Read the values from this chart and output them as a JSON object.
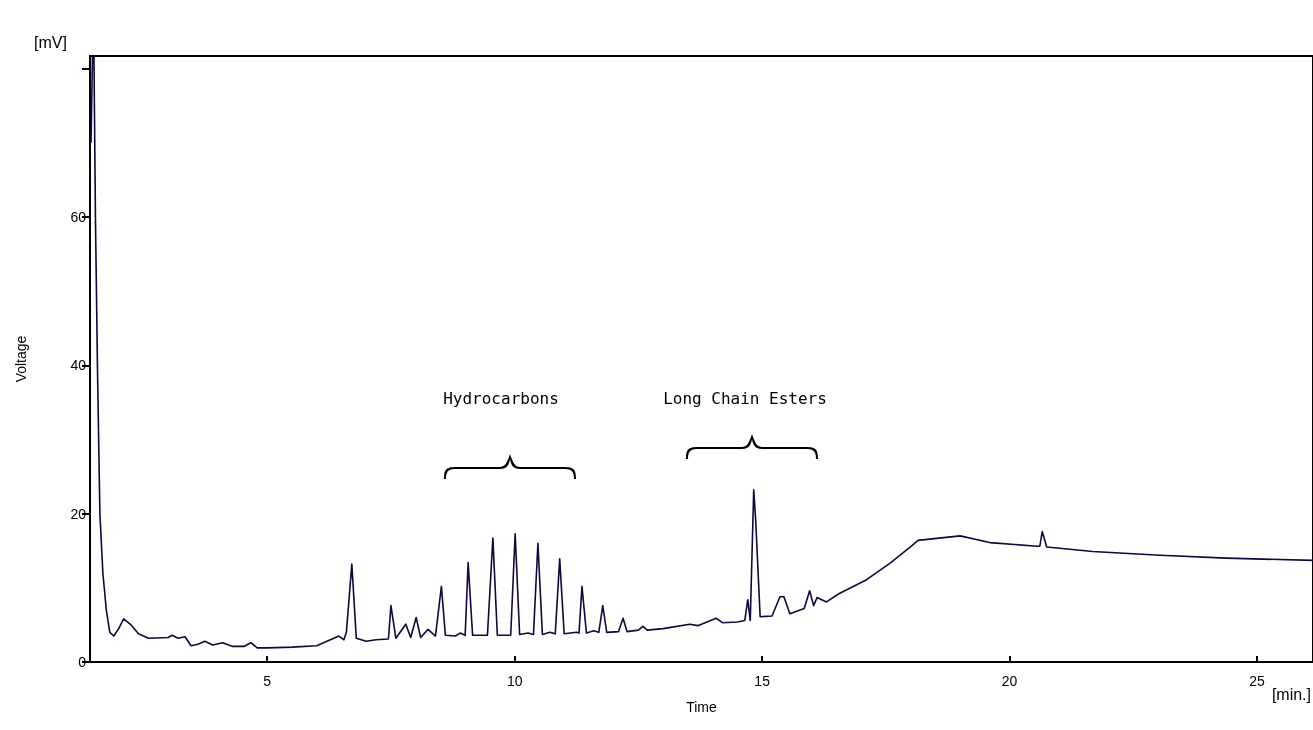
{
  "chart_data": {
    "type": "line",
    "xlabel": "Time",
    "ylabel": "Voltage",
    "annotations": [
      "[mV]",
      "[min.]",
      "Hydrocarbons",
      "Long Chain Esters"
    ],
    "xlim": [
      1.42,
      26.13
    ],
    "xticks": [
      5,
      10,
      15,
      20,
      25
    ],
    "ylim": [
      0,
      81.7
    ],
    "yticks": [
      0,
      20,
      40,
      60,
      {
        "value": 80,
        "label": null
      }
    ],
    "grid": false,
    "marker": "none",
    "series": [
      {
        "color": "#0a0a40",
        "x": [
          1.44,
          1.47,
          1.5,
          1.53,
          1.57,
          1.62,
          1.68,
          1.75,
          1.82,
          1.9,
          2.0,
          2.1,
          2.25,
          2.4,
          2.6,
          3.0,
          3.08,
          3.2,
          3.34,
          3.46,
          3.6,
          3.74,
          3.9,
          4.1,
          4.3,
          4.53,
          4.67,
          4.8,
          5.0,
          5.5,
          6.0,
          6.45,
          6.55,
          6.6,
          6.71,
          6.8,
          7.0,
          7.2,
          7.45,
          7.5,
          7.6,
          7.8,
          7.9,
          8.01,
          8.1,
          8.25,
          8.4,
          8.52,
          8.6,
          8.8,
          8.9,
          9.0,
          9.06,
          9.15,
          9.45,
          9.56,
          9.65,
          9.82,
          9.92,
          10.01,
          10.1,
          10.27,
          10.38,
          10.47,
          10.56,
          10.71,
          10.82,
          10.91,
          11.0,
          11.25,
          11.3,
          11.36,
          11.45,
          11.6,
          11.7,
          11.78,
          11.86,
          12.1,
          12.19,
          12.27,
          12.5,
          12.59,
          12.68,
          13.0,
          13.54,
          13.7,
          14.07,
          14.2,
          14.5,
          14.65,
          14.71,
          14.76,
          14.83,
          14.87,
          14.96,
          15.2,
          15.36,
          15.44,
          15.56,
          15.85,
          15.96,
          16.04,
          16.11,
          16.3,
          16.55,
          17.11,
          17.58,
          17.99,
          18.15,
          19.0,
          19.6,
          20.55,
          20.61,
          20.66,
          20.75,
          21.68,
          23.04,
          24.38,
          26.13
        ],
        "values": [
          70,
          81.5,
          81.5,
          60,
          40,
          20,
          12,
          7,
          4,
          3.5,
          4.5,
          5.8,
          5,
          3.8,
          3.2,
          3.3,
          3.6,
          3.2,
          3.4,
          2.2,
          2.4,
          2.8,
          2.3,
          2.6,
          2.1,
          2.1,
          2.6,
          1.9,
          1.9,
          2.0,
          2.2,
          3.5,
          3.0,
          4.0,
          13.2,
          3.2,
          2.8,
          3.0,
          3.1,
          7.6,
          3.2,
          5.1,
          3.3,
          6.0,
          3.3,
          4.4,
          3.5,
          10.2,
          3.6,
          3.5,
          3.9,
          3.6,
          13.4,
          3.6,
          3.6,
          16.7,
          3.6,
          3.6,
          3.6,
          17.3,
          3.7,
          3.9,
          3.7,
          16.0,
          3.7,
          4.0,
          3.8,
          13.9,
          3.8,
          4.0,
          3.9,
          10.2,
          3.9,
          4.2,
          4.0,
          7.6,
          4.0,
          4.1,
          5.9,
          4.1,
          4.3,
          4.8,
          4.3,
          4.5,
          5.1,
          4.9,
          5.9,
          5.3,
          5.4,
          5.6,
          8.4,
          5.6,
          23.2,
          19.1,
          6.1,
          6.2,
          8.8,
          8.8,
          6.5,
          7.2,
          9.6,
          7.6,
          8.7,
          8.1,
          9.2,
          11.1,
          13.3,
          15.5,
          16.4,
          17.0,
          16.1,
          15.6,
          15.6,
          17.6,
          15.5,
          14.9,
          14.4,
          14.0,
          13.7
        ]
      }
    ]
  }
}
